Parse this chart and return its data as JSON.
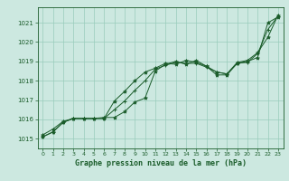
{
  "xlabel": "Graphe pression niveau de la mer (hPa)",
  "ylim": [
    1014.5,
    1021.8
  ],
  "xlim": [
    -0.5,
    23.5
  ],
  "yticks": [
    1015,
    1016,
    1017,
    1018,
    1019,
    1020,
    1021
  ],
  "xticks": [
    0,
    1,
    2,
    3,
    4,
    5,
    6,
    7,
    8,
    9,
    10,
    11,
    12,
    13,
    14,
    15,
    16,
    17,
    18,
    19,
    20,
    21,
    22,
    23
  ],
  "bg_color": "#cce8e0",
  "grid_color": "#99ccbb",
  "line_color": "#1a5c2a",
  "series1": [
    1015.2,
    1015.5,
    1015.9,
    1016.05,
    1016.05,
    1016.05,
    1016.1,
    1016.1,
    1016.4,
    1016.9,
    1017.1,
    1018.5,
    1018.85,
    1019.0,
    1018.85,
    1019.05,
    1018.75,
    1018.3,
    1018.3,
    1018.9,
    1019.0,
    1019.2,
    1021.0,
    1021.3
  ],
  "series2": [
    1015.1,
    1015.35,
    1015.85,
    1016.05,
    1016.05,
    1016.05,
    1016.05,
    1016.95,
    1017.45,
    1018.0,
    1018.45,
    1018.65,
    1018.9,
    1018.85,
    1019.05,
    1018.95,
    1018.75,
    1018.45,
    1018.35,
    1018.95,
    1019.05,
    1019.45,
    1020.25,
    1021.4
  ],
  "series3": [
    1015.1,
    1015.35,
    1015.85,
    1016.05,
    1016.05,
    1016.05,
    1016.05,
    1016.5,
    1016.95,
    1017.5,
    1018.0,
    1018.6,
    1018.8,
    1018.95,
    1018.9,
    1018.9,
    1018.7,
    1018.45,
    1018.35,
    1018.9,
    1018.95,
    1019.4,
    1020.65,
    1021.35
  ]
}
